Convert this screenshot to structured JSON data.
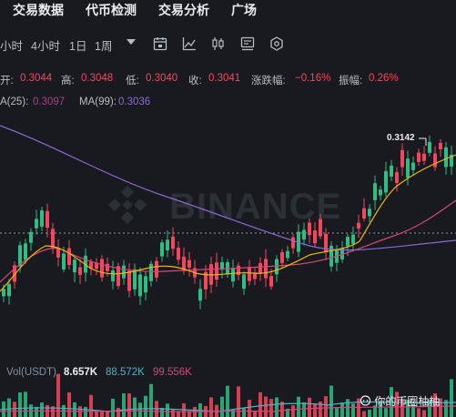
{
  "nav": {
    "items": [
      "交易数据",
      "代币检测",
      "交易分析",
      "广场"
    ]
  },
  "toolbar": {
    "timeframes": [
      "小时",
      "4小时",
      "1日",
      "1周"
    ],
    "icons": [
      "dropdown-caret-icon",
      "calendar-icon",
      "line-chart-icon",
      "candlestick-icon",
      "indicator-settings-icon",
      "hexagon-settings-icon"
    ]
  },
  "ohlc": {
    "open_label": "开:",
    "open": "0.3044",
    "high_label": "高:",
    "high": "0.3048",
    "low_label": "低:",
    "low": "0.3040",
    "close_label": "收:",
    "close": "0.3041",
    "change_label": "涨跌幅:",
    "change": "−0.16%",
    "amplitude_label": "振幅:",
    "amplitude": "0.26%"
  },
  "ma": {
    "ma25_label": "A(25):",
    "ma25": "0.3097",
    "ma99_label": "MA(99):",
    "ma99": "0.3036"
  },
  "chart": {
    "high_marker": "0.3142",
    "watermark": "BINANCE"
  },
  "volume": {
    "label": "Vol(USDT)",
    "vol": "8.657K",
    "ma_a": "88.572K",
    "ma_b": "99.556K"
  },
  "brand": "你的币圈柚柚",
  "colors": {
    "up": "#2ebd85",
    "down": "#f6465d",
    "ma7": "#f0b90b",
    "ma25": "#d5467d",
    "ma99": "#8c6ad6",
    "background": "#181a20"
  }
}
